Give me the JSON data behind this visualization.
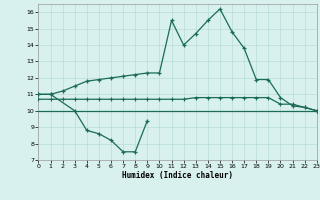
{
  "xlabel": "Humidex (Indice chaleur)",
  "x_values": [
    0,
    1,
    2,
    3,
    4,
    5,
    6,
    7,
    8,
    9,
    10,
    11,
    12,
    13,
    14,
    15,
    16,
    17,
    18,
    19,
    20,
    21,
    22,
    23
  ],
  "line_max": [
    11.0,
    11.0,
    11.2,
    11.5,
    11.8,
    11.9,
    12.0,
    12.1,
    12.2,
    12.3,
    12.3,
    15.5,
    14.0,
    14.7,
    15.5,
    16.2,
    14.8,
    13.8,
    11.9,
    11.9,
    10.8,
    10.3,
    10.2,
    10.0
  ],
  "line_min_x": [
    0,
    1,
    3,
    4,
    5,
    6,
    7,
    8,
    9
  ],
  "line_min_y": [
    11.0,
    11.0,
    10.0,
    8.8,
    8.6,
    8.2,
    7.5,
    7.5,
    9.4
  ],
  "line_med1": [
    10.7,
    10.7,
    10.7,
    10.7,
    10.7,
    10.7,
    10.7,
    10.7,
    10.7,
    10.7,
    10.7,
    10.7,
    10.7,
    10.8,
    10.8,
    10.8,
    10.8,
    10.8,
    10.8,
    10.8,
    10.4,
    10.4,
    10.2,
    10.0
  ],
  "line_med2": [
    10.0,
    10.0,
    10.0,
    10.0,
    10.0,
    10.0,
    10.0,
    10.0,
    10.0,
    10.0,
    10.0,
    10.0,
    10.0,
    10.0,
    10.0,
    10.0,
    10.0,
    10.0,
    10.0,
    10.0,
    10.0,
    10.0,
    10.0,
    10.0
  ],
  "color": "#1a6b5a",
  "bg_color": "#d8f0ee",
  "grid_color": "#b8dcd8",
  "ylim": [
    7,
    16.5
  ],
  "xlim": [
    0,
    23
  ],
  "yticks": [
    7,
    8,
    9,
    10,
    11,
    12,
    13,
    14,
    15,
    16
  ],
  "xticks": [
    0,
    1,
    2,
    3,
    4,
    5,
    6,
    7,
    8,
    9,
    10,
    11,
    12,
    13,
    14,
    15,
    16,
    17,
    18,
    19,
    20,
    21,
    22,
    23
  ]
}
